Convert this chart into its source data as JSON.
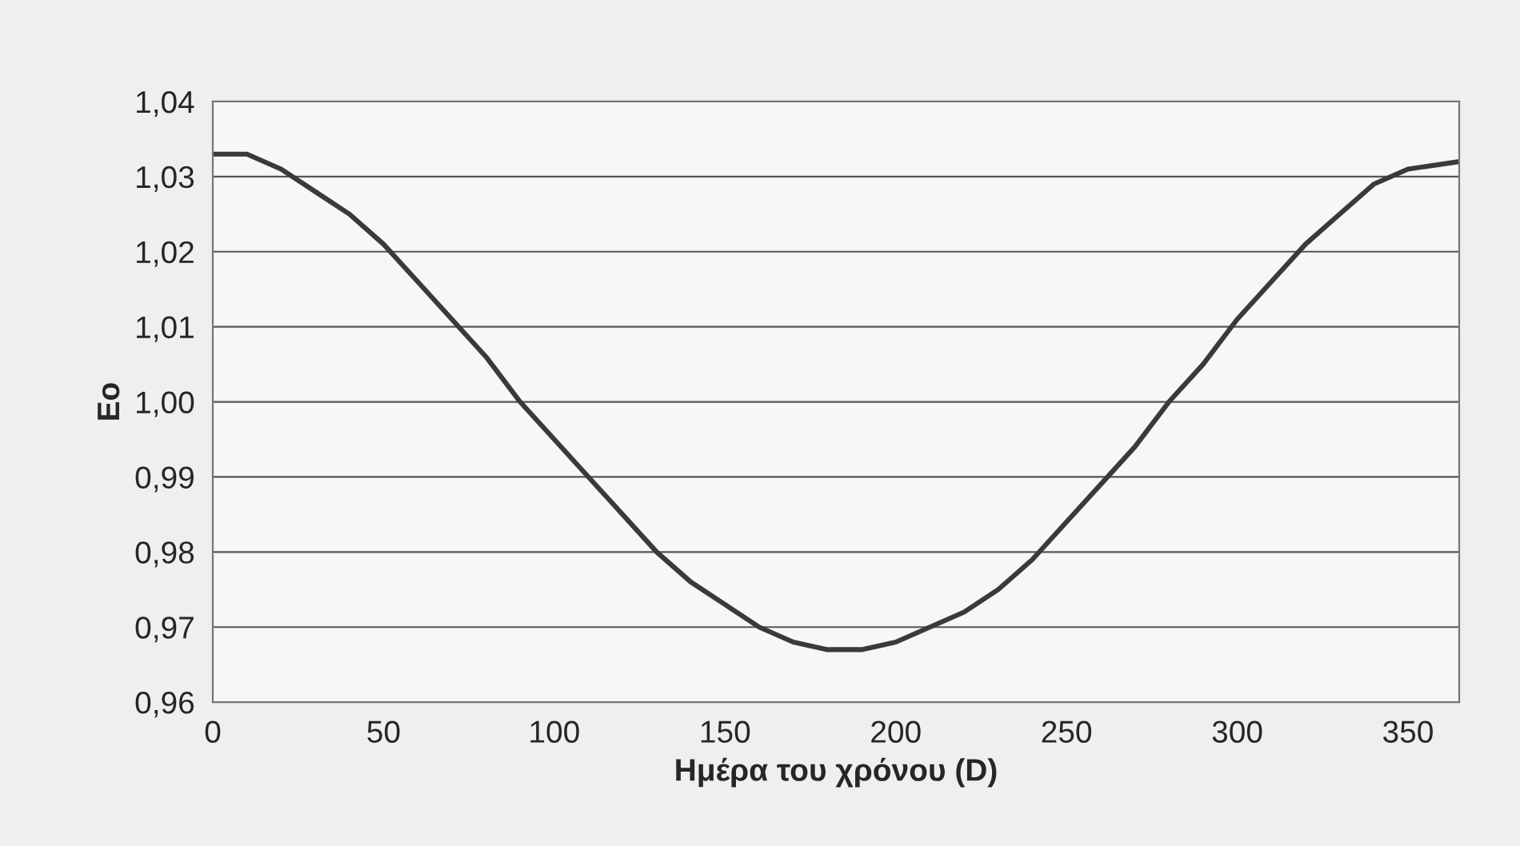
{
  "chart_data": {
    "type": "line",
    "xlabel": "Ημέρα του χρόνου (D)",
    "ylabel": "Eo",
    "x": [
      0,
      10,
      20,
      30,
      40,
      50,
      60,
      70,
      80,
      90,
      100,
      110,
      120,
      130,
      140,
      150,
      160,
      170,
      180,
      190,
      200,
      210,
      220,
      230,
      240,
      250,
      260,
      270,
      280,
      290,
      300,
      310,
      320,
      330,
      340,
      350,
      365
    ],
    "series": [
      {
        "color": "#3a3a3a",
        "values": [
          1.033,
          1.033,
          1.031,
          1.028,
          1.025,
          1.021,
          1.016,
          1.011,
          1.006,
          1.0,
          0.995,
          0.99,
          0.985,
          0.98,
          0.976,
          0.973,
          0.97,
          0.968,
          0.967,
          0.967,
          0.968,
          0.97,
          0.972,
          0.975,
          0.979,
          0.984,
          0.989,
          0.994,
          1.0,
          1.005,
          1.011,
          1.016,
          1.021,
          1.025,
          1.029,
          1.031,
          1.032
        ]
      }
    ],
    "xlim": [
      0,
      365
    ],
    "xticks": [
      0,
      50,
      100,
      150,
      200,
      250,
      300,
      350
    ],
    "ylim": [
      0.96,
      1.04
    ],
    "yticks": [
      {
        "value": 0.96,
        "label": "0,96"
      },
      {
        "value": 0.97,
        "label": "0,97"
      },
      {
        "value": 0.98,
        "label": "0,98"
      },
      {
        "value": 0.99,
        "label": "0,99"
      },
      {
        "value": 1.0,
        "label": "1,00"
      },
      {
        "value": 1.01,
        "label": "1,01"
      },
      {
        "value": 1.02,
        "label": "1,02"
      },
      {
        "value": 1.03,
        "label": "1,03"
      },
      {
        "value": 1.04,
        "label": "1,04"
      }
    ],
    "grid": "y",
    "legend": false,
    "marker": "none",
    "line_style": "solid"
  }
}
